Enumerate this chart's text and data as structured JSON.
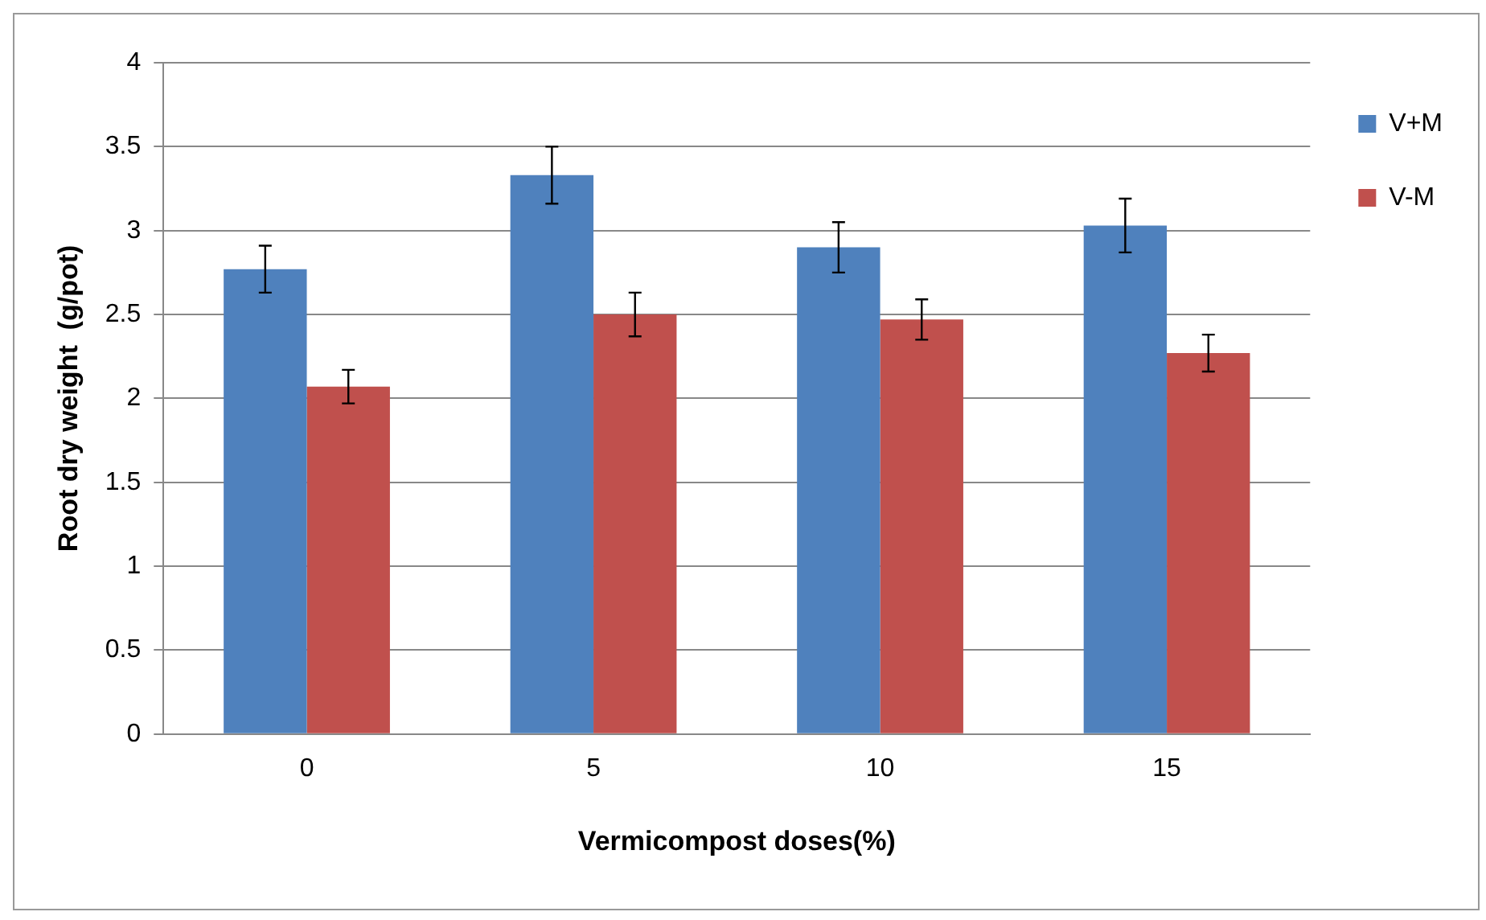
{
  "chart_data": {
    "type": "bar",
    "xlabel": "Vermicompost doses(%)",
    "ylabel": "Root dry weight  (g/pot)",
    "categories": [
      "0",
      "5",
      "10",
      "15"
    ],
    "series": [
      {
        "name": "V+M",
        "color": "#4f81bd",
        "values": [
          2.77,
          3.33,
          2.9,
          3.03
        ],
        "errors": [
          0.14,
          0.17,
          0.15,
          0.16
        ]
      },
      {
        "name": "V-M",
        "color": "#c0504d",
        "values": [
          2.07,
          2.5,
          2.47,
          2.27
        ],
        "errors": [
          0.1,
          0.13,
          0.12,
          0.11
        ]
      }
    ],
    "ylim": [
      0,
      4
    ],
    "yticks": [
      0,
      0.5,
      1,
      1.5,
      2,
      2.5,
      3,
      3.5,
      4
    ],
    "grid": "y",
    "legend": "right"
  }
}
